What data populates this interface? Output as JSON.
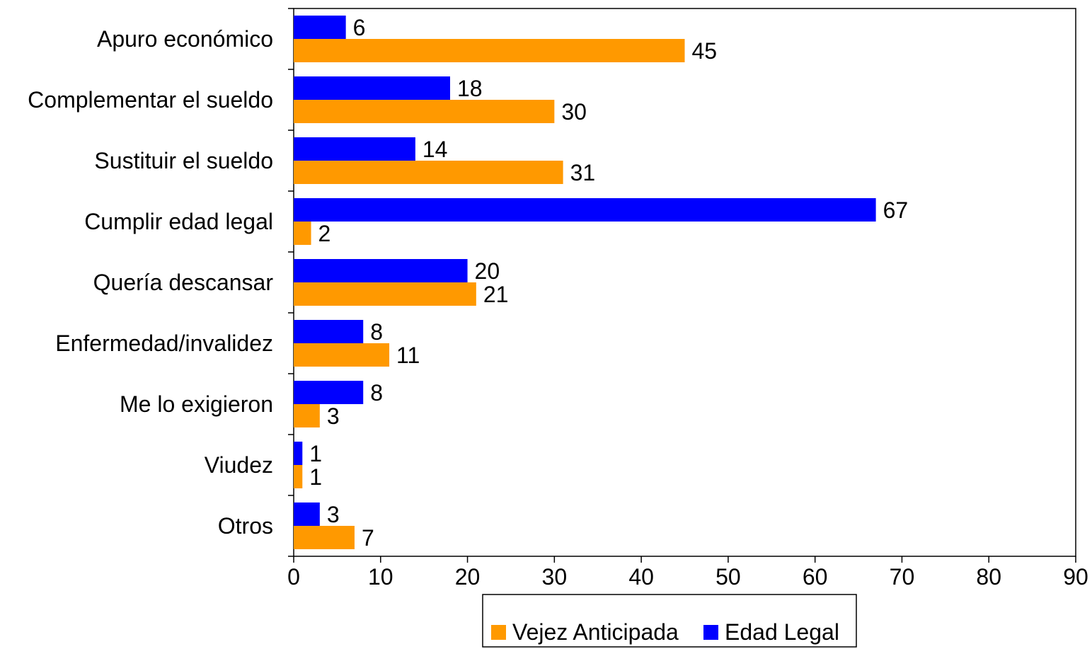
{
  "chart_data": {
    "type": "bar",
    "orientation": "horizontal",
    "title": "",
    "xlabel": "",
    "ylabel": "",
    "categories": [
      "Apuro económico",
      "Complementar el sueldo",
      "Sustituir el sueldo",
      "Cumplir edad legal",
      "Quería descansar",
      "Enfermedad/invalidez",
      "Me lo exigieron",
      "Viudez",
      "Otros"
    ],
    "series": [
      {
        "name": "Edad Legal",
        "color": "#0000ff",
        "values": [
          6,
          18,
          14,
          67,
          20,
          8,
          8,
          1,
          3
        ]
      },
      {
        "name": "Vejez Anticipada",
        "color": "#ff9900",
        "values": [
          45,
          30,
          31,
          2,
          21,
          11,
          3,
          1,
          7
        ]
      }
    ],
    "xlim": [
      0,
      90
    ],
    "xticks": [
      0,
      10,
      20,
      30,
      40,
      50,
      60,
      70,
      80,
      90
    ],
    "grid": false,
    "legend": {
      "placement": "bottom",
      "order": [
        "Vejez Anticipada",
        "Edad Legal"
      ]
    }
  }
}
